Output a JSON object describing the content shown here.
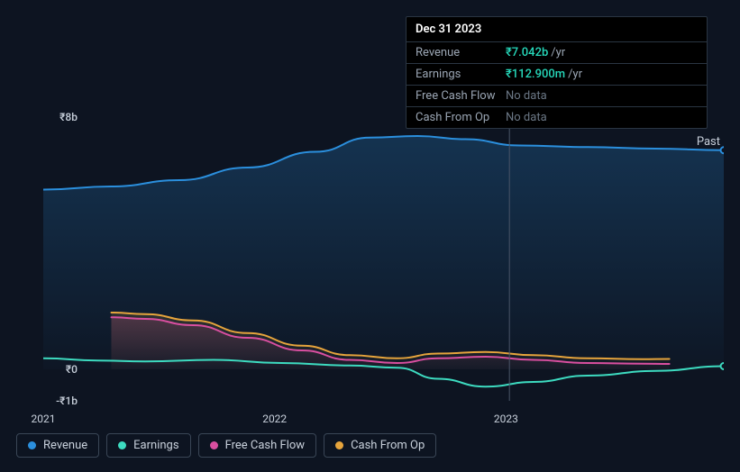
{
  "chart": {
    "type": "line-area",
    "background_color": "#0d1421",
    "grid_color": "#2a3542",
    "text_color": "#c8d0db",
    "past_label": "Past",
    "y_axis": {
      "ticks": [
        {
          "label": "₹8b",
          "value": 8000000000
        },
        {
          "label": "₹0",
          "value": 0
        },
        {
          "label": "-₹1b",
          "value": -1000000000
        }
      ],
      "min": -1000000000,
      "max": 8000000000
    },
    "x_axis": {
      "labels": [
        "2021",
        "2022",
        "2023"
      ],
      "positions": [
        0.0,
        0.34,
        0.68
      ]
    },
    "cursor_x": 0.685,
    "series": [
      {
        "id": "revenue",
        "label": "Revenue",
        "color": "#2b8fdd",
        "fill": true,
        "fill_opacity_top": 0.25,
        "fill_opacity_bottom": 0.02,
        "stroke_width": 2,
        "points": [
          [
            0.0,
            5700000000
          ],
          [
            0.1,
            5800000000
          ],
          [
            0.2,
            6000000000
          ],
          [
            0.3,
            6400000000
          ],
          [
            0.4,
            6900000000
          ],
          [
            0.48,
            7350000000
          ],
          [
            0.55,
            7400000000
          ],
          [
            0.62,
            7300000000
          ],
          [
            0.7,
            7100000000
          ],
          [
            0.8,
            7050000000
          ],
          [
            0.9,
            7000000000
          ],
          [
            1.0,
            6950000000
          ]
        ]
      },
      {
        "id": "earnings",
        "label": "Earnings",
        "color": "#3ddbc0",
        "fill": false,
        "stroke_width": 2,
        "points": [
          [
            0.0,
            350000000
          ],
          [
            0.08,
            280000000
          ],
          [
            0.15,
            250000000
          ],
          [
            0.25,
            300000000
          ],
          [
            0.35,
            200000000
          ],
          [
            0.45,
            120000000
          ],
          [
            0.52,
            50000000
          ],
          [
            0.58,
            -300000000
          ],
          [
            0.65,
            -550000000
          ],
          [
            0.72,
            -400000000
          ],
          [
            0.8,
            -200000000
          ],
          [
            0.9,
            -50000000
          ],
          [
            1.0,
            100000000
          ]
        ]
      },
      {
        "id": "fcf",
        "label": "Free Cash Flow",
        "color": "#d94fa0",
        "fill": true,
        "fill_opacity_top": 0.18,
        "fill_opacity_bottom": 0.02,
        "stroke_width": 2,
        "start_x": 0.1,
        "points": [
          [
            0.1,
            1650000000
          ],
          [
            0.15,
            1600000000
          ],
          [
            0.22,
            1400000000
          ],
          [
            0.3,
            1000000000
          ],
          [
            0.38,
            600000000
          ],
          [
            0.45,
            300000000
          ],
          [
            0.52,
            200000000
          ],
          [
            0.58,
            350000000
          ],
          [
            0.65,
            400000000
          ],
          [
            0.72,
            300000000
          ],
          [
            0.8,
            200000000
          ],
          [
            0.88,
            180000000
          ],
          [
            0.92,
            170000000
          ]
        ]
      },
      {
        "id": "cfo",
        "label": "Cash From Op",
        "color": "#e6a43c",
        "fill": true,
        "fill_opacity_top": 0.15,
        "fill_opacity_bottom": 0.02,
        "stroke_width": 2,
        "start_x": 0.1,
        "points": [
          [
            0.1,
            1800000000
          ],
          [
            0.15,
            1750000000
          ],
          [
            0.22,
            1550000000
          ],
          [
            0.3,
            1150000000
          ],
          [
            0.38,
            750000000
          ],
          [
            0.45,
            450000000
          ],
          [
            0.52,
            350000000
          ],
          [
            0.58,
            500000000
          ],
          [
            0.65,
            550000000
          ],
          [
            0.72,
            450000000
          ],
          [
            0.8,
            350000000
          ],
          [
            0.88,
            320000000
          ],
          [
            0.92,
            330000000
          ]
        ]
      }
    ]
  },
  "tooltip": {
    "title": "Dec 31 2023",
    "rows": [
      {
        "label": "Revenue",
        "value": "₹7.042b",
        "unit": "/yr",
        "color": "#26d9bb"
      },
      {
        "label": "Earnings",
        "value": "₹112.900m",
        "unit": "/yr",
        "color": "#26d9bb"
      },
      {
        "label": "Free Cash Flow",
        "nodata": "No data"
      },
      {
        "label": "Cash From Op",
        "nodata": "No data"
      }
    ]
  },
  "legend": [
    {
      "id": "revenue",
      "label": "Revenue",
      "color": "#2b8fdd"
    },
    {
      "id": "earnings",
      "label": "Earnings",
      "color": "#3ddbc0"
    },
    {
      "id": "fcf",
      "label": "Free Cash Flow",
      "color": "#d94fa0"
    },
    {
      "id": "cfo",
      "label": "Cash From Op",
      "color": "#e6a43c"
    }
  ]
}
